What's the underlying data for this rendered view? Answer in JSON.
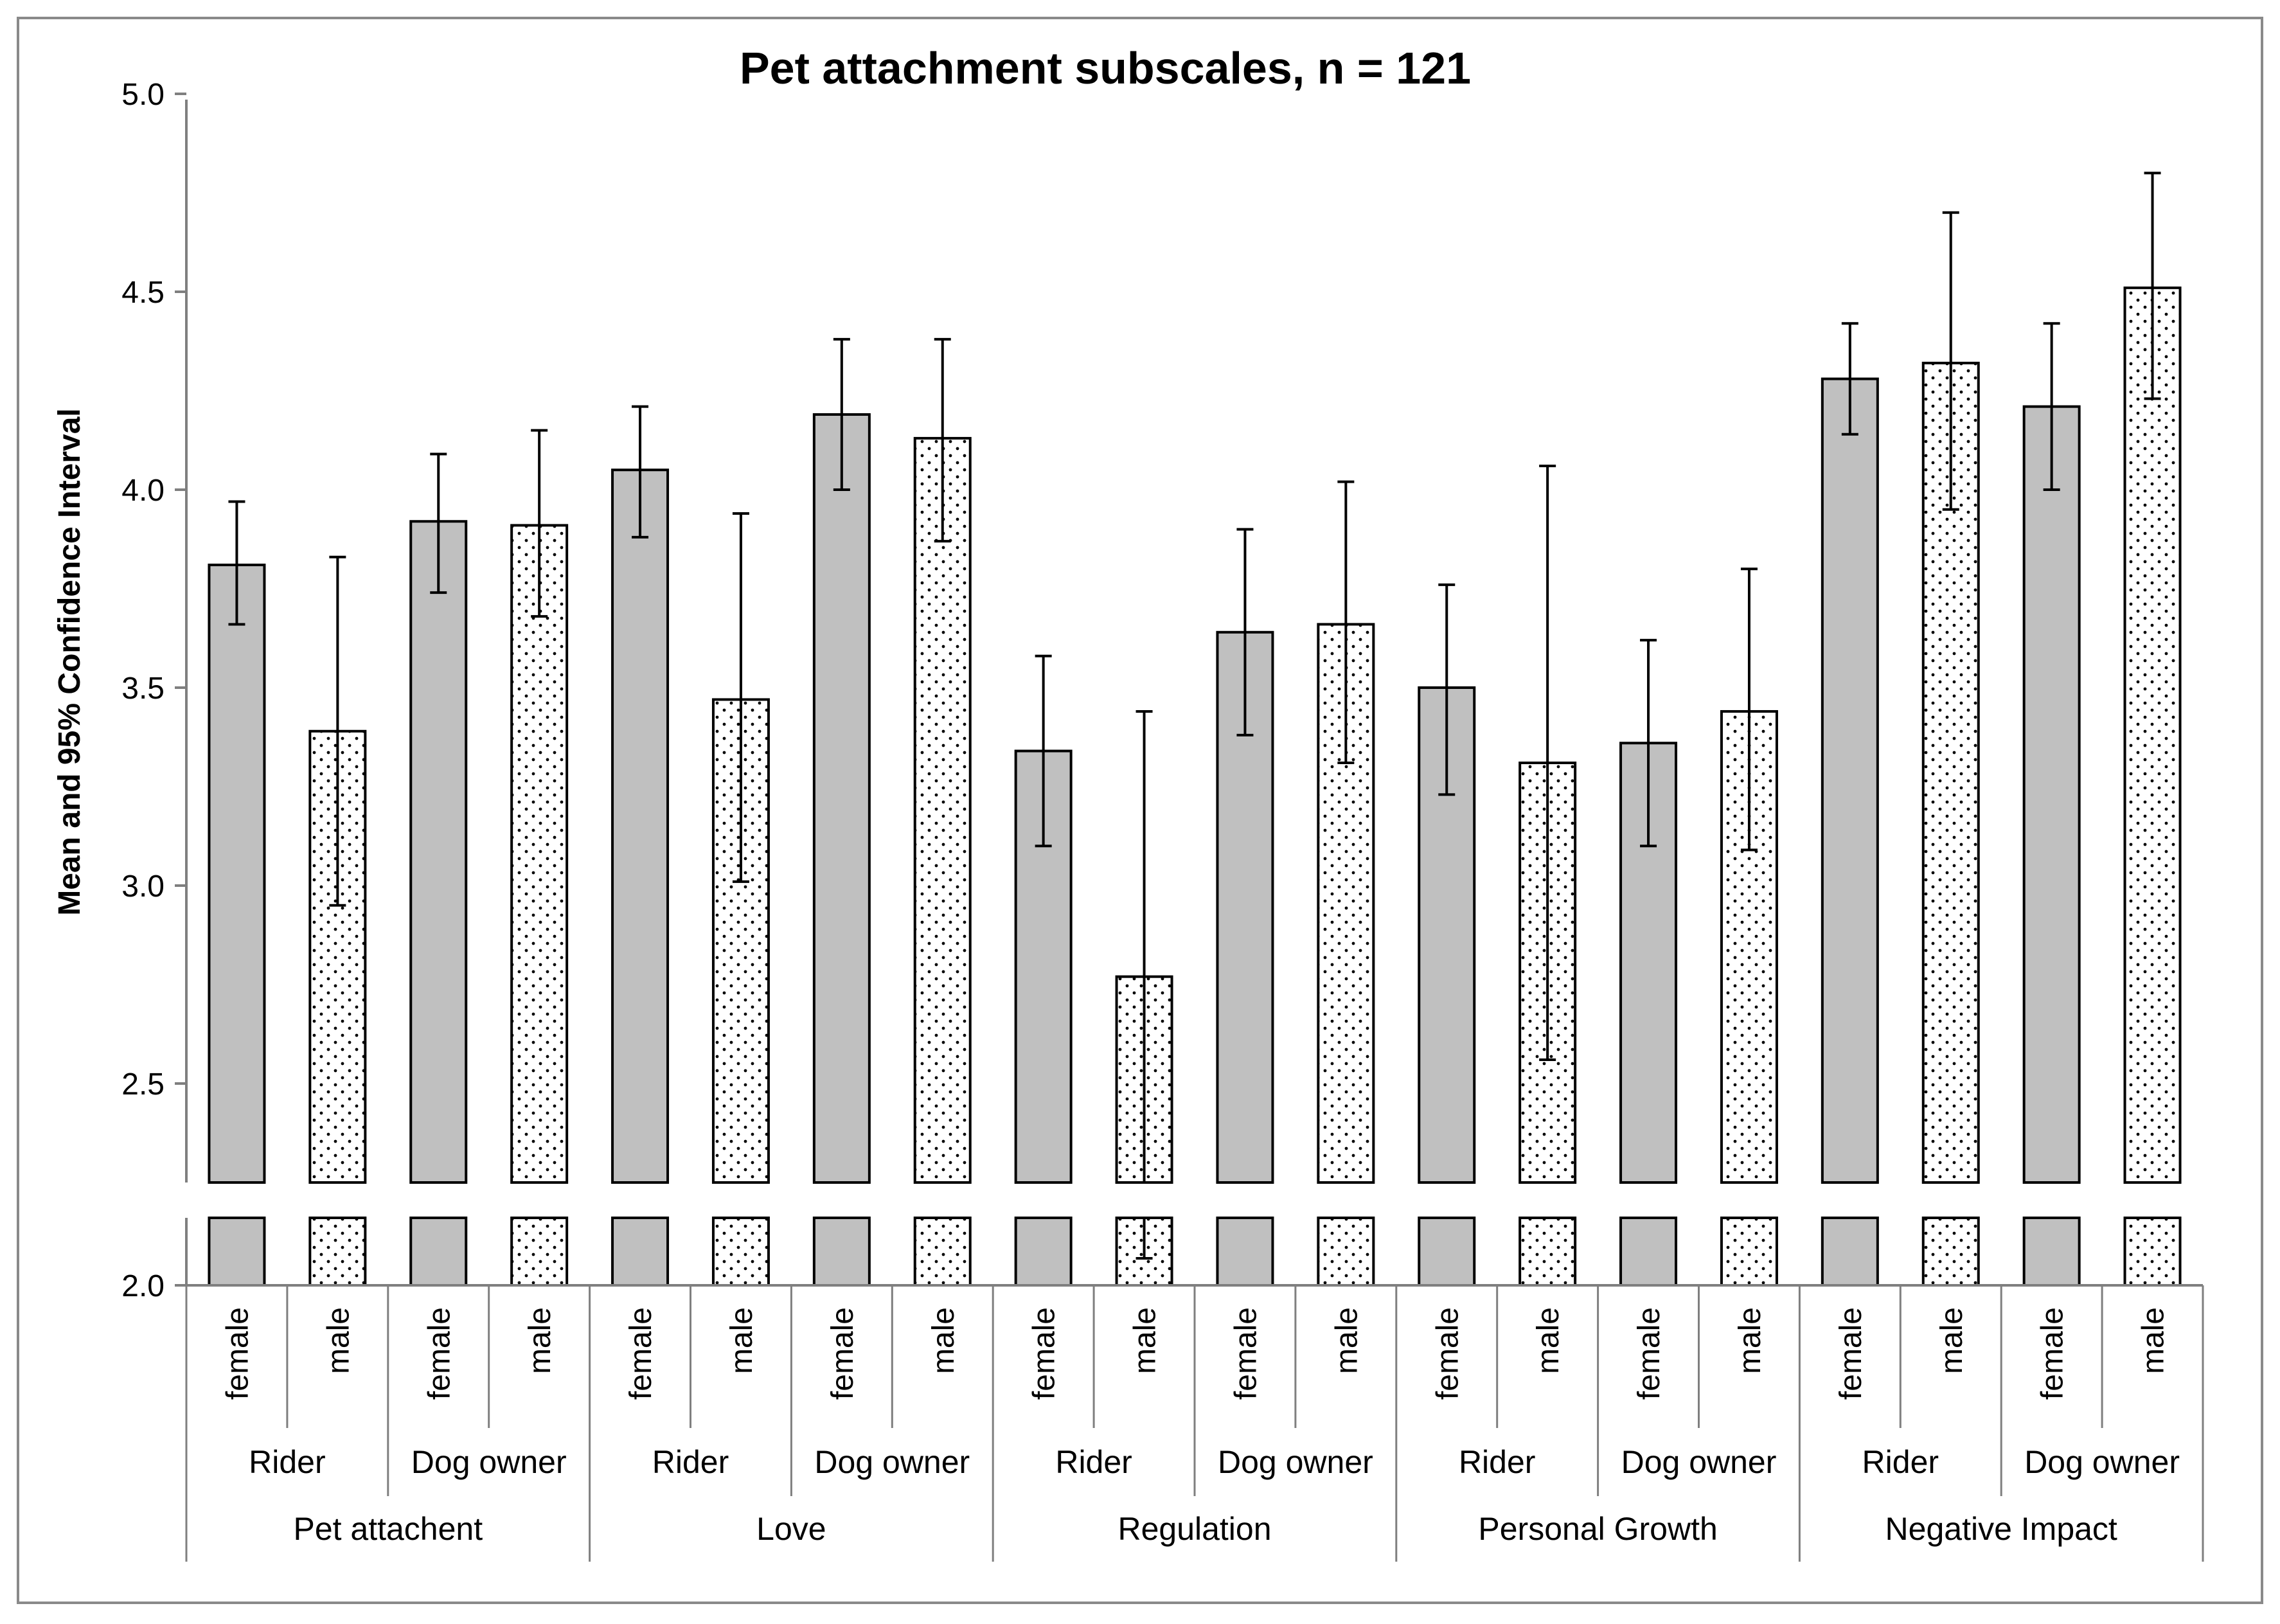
{
  "chart_data": {
    "type": "bar",
    "title": "Pet attachment subscales, n = 121",
    "ylabel": "Mean and 95% Confidence Interval",
    "xlabel": "",
    "ylim": [
      2.0,
      5.0
    ],
    "yticks": [
      "2.0",
      "2.5",
      "3.0",
      "3.5",
      "4.0",
      "4.5",
      "5.0"
    ],
    "axis_break": "between 2.0 and 2.25",
    "grid": false,
    "fill_colors": {
      "female": "#c0c0c0",
      "male": "#ffffff"
    },
    "groups": [
      "Pet attachent",
      "Love",
      "Regulation",
      "Personal Growth",
      "Negative Impact"
    ],
    "subgroups": [
      "Rider",
      "Dog owner"
    ],
    "genders": [
      "female",
      "male"
    ],
    "bars": [
      {
        "group": "Pet attachent",
        "subgroup": "Rider",
        "gender": "female",
        "mean": 3.81,
        "ci_low": 3.66,
        "ci_high": 3.97
      },
      {
        "group": "Pet attachent",
        "subgroup": "Rider",
        "gender": "male",
        "mean": 3.39,
        "ci_low": 2.95,
        "ci_high": 3.83
      },
      {
        "group": "Pet attachent",
        "subgroup": "Dog owner",
        "gender": "female",
        "mean": 3.92,
        "ci_low": 3.74,
        "ci_high": 4.09
      },
      {
        "group": "Pet attachent",
        "subgroup": "Dog owner",
        "gender": "male",
        "mean": 3.91,
        "ci_low": 3.68,
        "ci_high": 4.15
      },
      {
        "group": "Love",
        "subgroup": "Rider",
        "gender": "female",
        "mean": 4.05,
        "ci_low": 3.88,
        "ci_high": 4.21
      },
      {
        "group": "Love",
        "subgroup": "Rider",
        "gender": "male",
        "mean": 3.47,
        "ci_low": 3.01,
        "ci_high": 3.94
      },
      {
        "group": "Love",
        "subgroup": "Dog owner",
        "gender": "female",
        "mean": 4.19,
        "ci_low": 4.0,
        "ci_high": 4.38
      },
      {
        "group": "Love",
        "subgroup": "Dog owner",
        "gender": "male",
        "mean": 4.13,
        "ci_low": 3.87,
        "ci_high": 4.38
      },
      {
        "group": "Regulation",
        "subgroup": "Rider",
        "gender": "female",
        "mean": 3.34,
        "ci_low": 3.1,
        "ci_high": 3.58
      },
      {
        "group": "Regulation",
        "subgroup": "Rider",
        "gender": "male",
        "mean": 2.77,
        "ci_low": 2.1,
        "ci_high": 3.44
      },
      {
        "group": "Regulation",
        "subgroup": "Dog owner",
        "gender": "female",
        "mean": 3.64,
        "ci_low": 3.38,
        "ci_high": 3.9
      },
      {
        "group": "Regulation",
        "subgroup": "Dog owner",
        "gender": "male",
        "mean": 3.66,
        "ci_low": 3.31,
        "ci_high": 4.02
      },
      {
        "group": "Personal Growth",
        "subgroup": "Rider",
        "gender": "female",
        "mean": 3.5,
        "ci_low": 3.23,
        "ci_high": 3.76
      },
      {
        "group": "Personal Growth",
        "subgroup": "Rider",
        "gender": "male",
        "mean": 3.31,
        "ci_low": 2.56,
        "ci_high": 4.06
      },
      {
        "group": "Personal Growth",
        "subgroup": "Dog owner",
        "gender": "female",
        "mean": 3.36,
        "ci_low": 3.1,
        "ci_high": 3.62
      },
      {
        "group": "Personal Growth",
        "subgroup": "Dog owner",
        "gender": "male",
        "mean": 3.44,
        "ci_low": 3.09,
        "ci_high": 3.8
      },
      {
        "group": "Negative Impact",
        "subgroup": "Rider",
        "gender": "female",
        "mean": 4.28,
        "ci_low": 4.14,
        "ci_high": 4.42
      },
      {
        "group": "Negative Impact",
        "subgroup": "Rider",
        "gender": "male",
        "mean": 4.32,
        "ci_low": 3.95,
        "ci_high": 4.7
      },
      {
        "group": "Negative Impact",
        "subgroup": "Dog owner",
        "gender": "female",
        "mean": 4.21,
        "ci_low": 4.0,
        "ci_high": 4.42
      },
      {
        "group": "Negative Impact",
        "subgroup": "Dog owner",
        "gender": "male",
        "mean": 4.51,
        "ci_low": 4.23,
        "ci_high": 4.8
      }
    ]
  }
}
